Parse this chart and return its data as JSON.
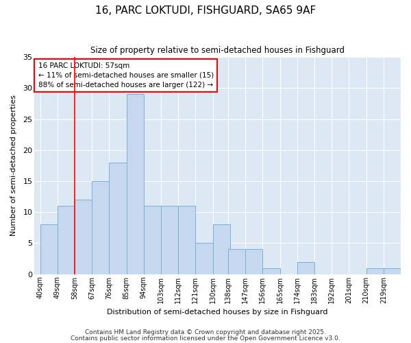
{
  "title1": "16, PARC LOKTUDI, FISHGUARD, SA65 9AF",
  "title2": "Size of property relative to semi-detached houses in Fishguard",
  "xlabel": "Distribution of semi-detached houses by size in Fishguard",
  "ylabel": "Number of semi-detached properties",
  "bins": [
    40,
    49,
    58,
    67,
    76,
    85,
    94,
    103,
    112,
    121,
    130,
    138,
    147,
    156,
    165,
    174,
    183,
    192,
    201,
    210,
    219
  ],
  "values": [
    8,
    11,
    12,
    15,
    18,
    29,
    11,
    11,
    11,
    5,
    8,
    4,
    4,
    1,
    0,
    2,
    0,
    0,
    0,
    1,
    1
  ],
  "bar_color": "#c5d8f0",
  "bar_edge_color": "#7bafd4",
  "bg_color": "#dde8f5",
  "grid_color": "#ffffff",
  "fig_bg_color": "#ffffff",
  "redline_x": 58,
  "annotation_title": "16 PARC LOKTUDI: 57sqm",
  "annotation_line1": "← 11% of semi-detached houses are smaller (15)",
  "annotation_line2": "88% of semi-detached houses are larger (122) →",
  "ylim": [
    0,
    35
  ],
  "yticks": [
    0,
    5,
    10,
    15,
    20,
    25,
    30,
    35
  ],
  "footer1": "Contains HM Land Registry data © Crown copyright and database right 2025.",
  "footer2": "Contains public sector information licensed under the Open Government Licence v3.0."
}
